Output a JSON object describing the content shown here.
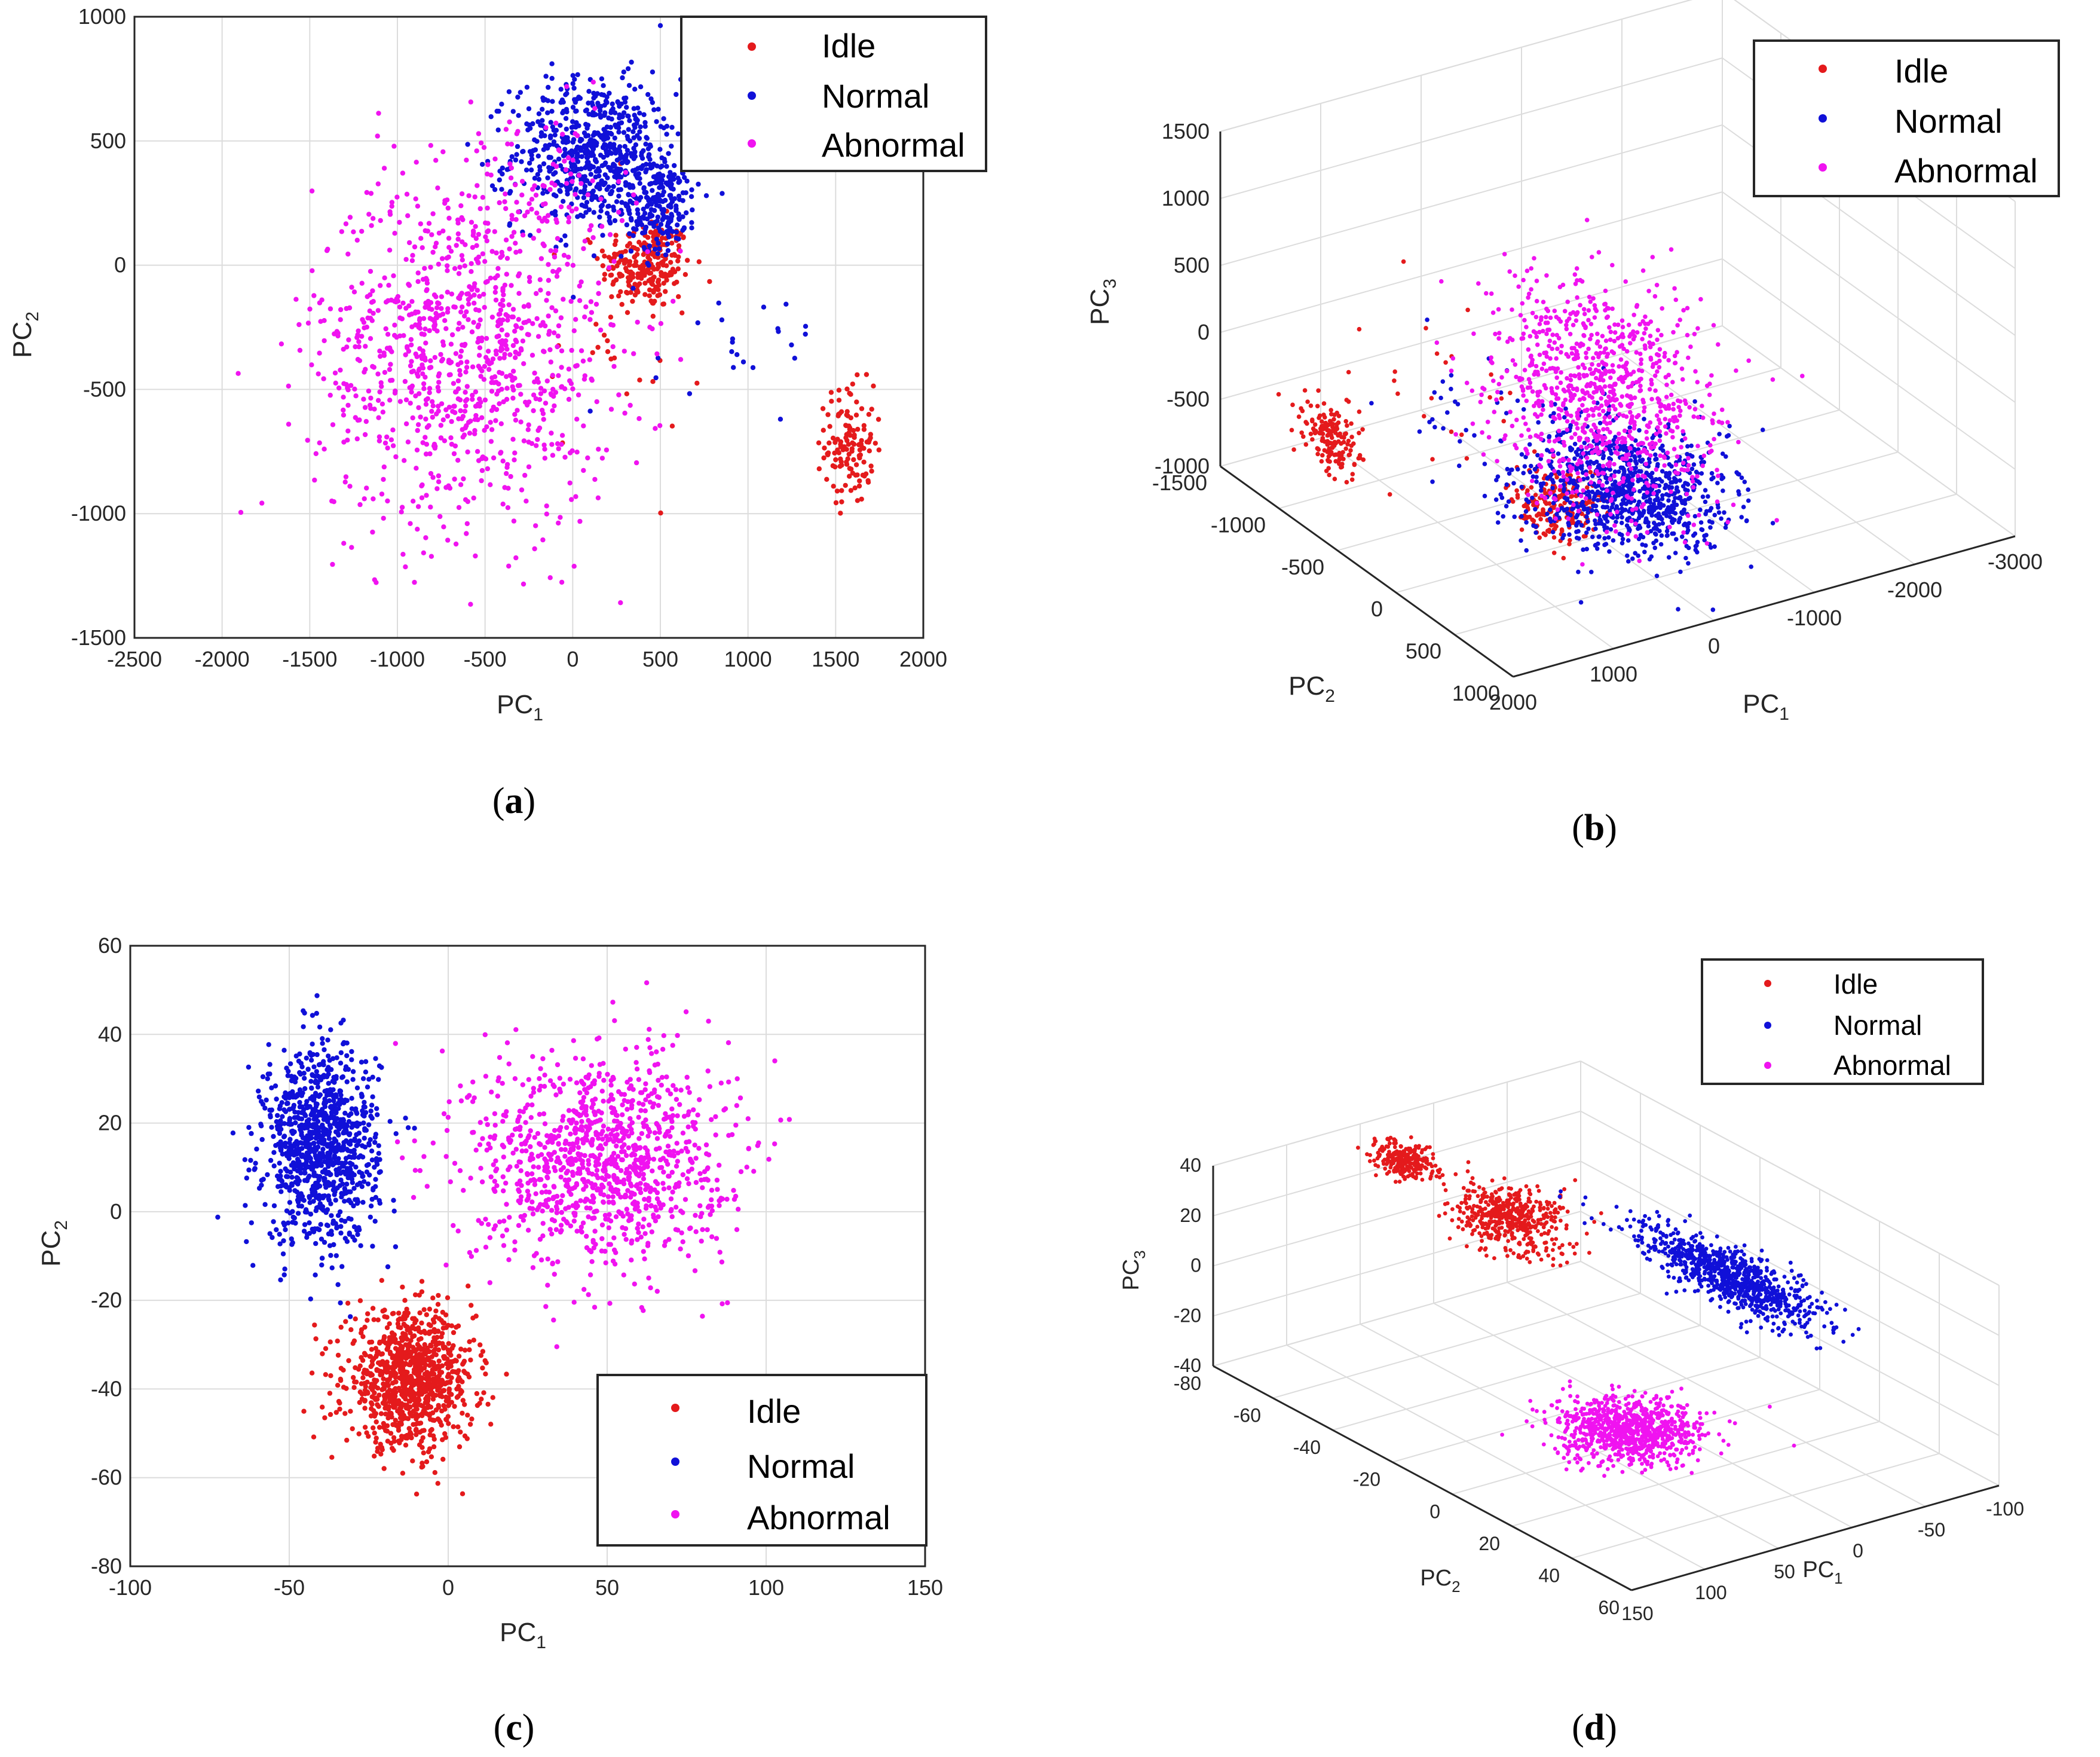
{
  "colors": {
    "idle": "#e41a1c",
    "normal": "#1010d8",
    "abnormal": "#f013f0",
    "grid": "#dcdcdc",
    "axis": "#262626"
  },
  "legend": {
    "idle": "Idle",
    "normal": "Normal",
    "abnormal": "Abnormal"
  },
  "chart_data": [
    {
      "id": "a",
      "caption": "a",
      "type": "scatter",
      "xlabel": "PC",
      "xlabel_sub": "1",
      "ylabel": "PC",
      "ylabel_sub": "2",
      "xlim": [
        -2500,
        2000
      ],
      "ylim": [
        -1500,
        1000
      ],
      "xticks": [
        -2500,
        -2000,
        -1500,
        -1000,
        -500,
        0,
        500,
        1000,
        1500,
        2000
      ],
      "yticks": [
        -1500,
        -1000,
        -500,
        0,
        500,
        1000
      ],
      "grid": true,
      "legend_loc": "top-right",
      "series": [
        {
          "name": "Idle",
          "clusters": [
            {
              "cx": 420,
              "cy": 0,
              "sx": 130,
              "sy": 90,
              "n": 230
            },
            {
              "cx": 1580,
              "cy": -720,
              "sx": 70,
              "sy": 120,
              "n": 130
            },
            {
              "cx": 300,
              "cy": -250,
              "sx": 220,
              "sy": 260,
              "n": 35
            }
          ]
        },
        {
          "name": "Normal",
          "clusters": [
            {
              "cx": 120,
              "cy": 450,
              "sx": 230,
              "sy": 150,
              "n": 650
            },
            {
              "cx": 500,
              "cy": 250,
              "sx": 110,
              "sy": 90,
              "n": 200
            },
            {
              "cx": 1000,
              "cy": -250,
              "sx": 280,
              "sy": 160,
              "n": 25
            }
          ]
        },
        {
          "name": "Abnormal",
          "clusters": [
            {
              "cx": -620,
              "cy": -350,
              "sx": 430,
              "sy": 350,
              "n": 1000
            },
            {
              "cx": -200,
              "cy": 300,
              "sx": 240,
              "sy": 150,
              "n": 90
            }
          ]
        }
      ]
    },
    {
      "id": "b",
      "caption": "b",
      "type": "scatter3d",
      "xlabel": "PC",
      "xlabel_sub": "1",
      "ylabel": "PC",
      "ylabel_sub": "2",
      "zlabel": "PC",
      "zlabel_sub": "3",
      "xlim": [
        -3000,
        2000
      ],
      "ylim": [
        -1500,
        1000
      ],
      "zlim": [
        -1000,
        1500
      ],
      "xticks": [
        2000,
        1000,
        0,
        -1000,
        -2000,
        -3000
      ],
      "yticks": [
        -1500,
        -1000,
        -500,
        0,
        500,
        1000
      ],
      "zticks": [
        -1000,
        -500,
        0,
        500,
        1000,
        1500
      ],
      "grid": true,
      "legend_loc": "top-right",
      "series": [
        {
          "name": "Idle",
          "clusters": [
            {
              "cx": 1600,
              "cy": -900,
              "cz": -500,
              "sx": 80,
              "sy": 110,
              "sz": 120,
              "n": 160
            },
            {
              "cx": 380,
              "cy": -20,
              "cz": -700,
              "sx": 180,
              "sy": 110,
              "sz": 120,
              "n": 200
            },
            {
              "cx": 900,
              "cy": -450,
              "cz": 0,
              "sx": 350,
              "sy": 300,
              "sz": 450,
              "n": 25
            }
          ]
        },
        {
          "name": "Normal",
          "clusters": [
            {
              "cx": 0,
              "cy": 250,
              "cz": -500,
              "sx": 380,
              "sy": 260,
              "sz": 160,
              "n": 900
            },
            {
              "cx": 800,
              "cy": -500,
              "cz": -150,
              "sx": 300,
              "sy": 250,
              "sz": 250,
              "n": 30
            }
          ]
        },
        {
          "name": "Abnormal",
          "clusters": [
            {
              "cx": -500,
              "cy": -400,
              "cz": -150,
              "sx": 420,
              "sy": 330,
              "sz": 300,
              "n": 700
            },
            {
              "cx": -300,
              "cy": -100,
              "cz": -550,
              "sx": 350,
              "sy": 300,
              "sz": 200,
              "n": 200
            }
          ]
        }
      ]
    },
    {
      "id": "c",
      "caption": "c",
      "type": "scatter",
      "xlabel": "PC",
      "xlabel_sub": "1",
      "ylabel": "PC",
      "ylabel_sub": "2",
      "xlim": [
        -100,
        150
      ],
      "ylim": [
        -80,
        60
      ],
      "xticks": [
        -100,
        -50,
        0,
        50,
        100,
        150
      ],
      "yticks": [
        -80,
        -60,
        -40,
        -20,
        0,
        20,
        40,
        60
      ],
      "grid": true,
      "legend_loc": "bottom-right",
      "series": [
        {
          "name": "Idle",
          "clusters": [
            {
              "cx": -12,
              "cy": -38,
              "sx": 10,
              "sy": 7.5,
              "n": 950
            }
          ]
        },
        {
          "name": "Normal",
          "clusters": [
            {
              "cx": -40,
              "cy": 15,
              "sx": 9,
              "sy": 11,
              "n": 1000
            }
          ]
        },
        {
          "name": "Abnormal",
          "clusters": [
            {
              "cx": 48,
              "cy": 12,
              "sx": 20,
              "sy": 12,
              "n": 1100
            }
          ]
        }
      ]
    },
    {
      "id": "d",
      "caption": "d",
      "type": "scatter3d",
      "xlabel": "PC",
      "xlabel_sub": "1",
      "ylabel": "PC",
      "ylabel_sub": "2",
      "zlabel": "PC",
      "zlabel_sub": "3",
      "xlim": [
        -100,
        150
      ],
      "ylim": [
        -80,
        60
      ],
      "zlim": [
        -40,
        40
      ],
      "xticks": [
        150,
        100,
        50,
        0,
        -50,
        -100
      ],
      "yticks": [
        -80,
        -60,
        -40,
        -20,
        0,
        20,
        40,
        60
      ],
      "zticks": [
        -40,
        -20,
        0,
        20,
        40
      ],
      "grid": true,
      "legend_loc": "top-right",
      "series": [
        {
          "name": "Idle",
          "clusters": [
            {
              "cx": 50,
              "cy": -65,
              "cz": 35,
              "sx": 7,
              "sy": 4,
              "sz": 2.5,
              "n": 250
            },
            {
              "cx": 40,
              "cy": -35,
              "cz": 30,
              "sx": 12,
              "sy": 7,
              "sz": 5,
              "n": 500
            }
          ]
        },
        {
          "name": "Normal",
          "clusters": [
            {
              "cx": -40,
              "cy": 0,
              "cz": 15,
              "sx": 9,
              "sy": 14,
              "sz": 4,
              "n": 900
            }
          ]
        },
        {
          "name": "Abnormal",
          "clusters": [
            {
              "cx": 60,
              "cy": 15,
              "cz": -20,
              "sx": 20,
              "sy": 8,
              "sz": 3,
              "n": 900
            }
          ]
        }
      ]
    }
  ]
}
